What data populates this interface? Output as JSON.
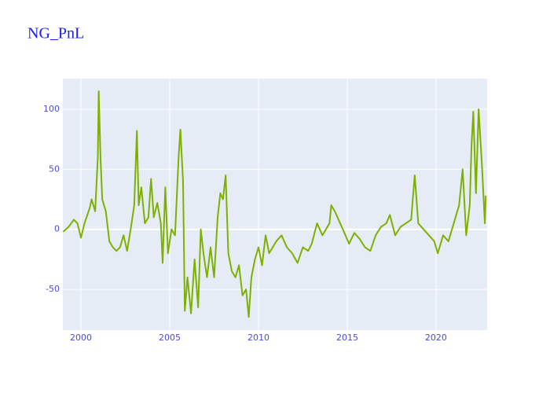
{
  "chart_data": {
    "type": "line",
    "title": "NG_PnL",
    "color": "#7fb000",
    "x": [
      1999.0,
      1999.3,
      1999.6,
      1999.8,
      2000.0,
      2000.2,
      2000.5,
      2000.6,
      2000.8,
      2000.95,
      2001.0,
      2001.1,
      2001.2,
      2001.4,
      2001.6,
      2001.8,
      2002.0,
      2002.2,
      2002.4,
      2002.6,
      2002.8,
      2003.0,
      2003.15,
      2003.25,
      2003.4,
      2003.6,
      2003.8,
      2003.95,
      2004.1,
      2004.3,
      2004.5,
      2004.6,
      2004.75,
      2004.9,
      2005.1,
      2005.3,
      2005.5,
      2005.6,
      2005.75,
      2005.85,
      2006.0,
      2006.2,
      2006.4,
      2006.6,
      2006.75,
      2006.9,
      2007.1,
      2007.3,
      2007.5,
      2007.7,
      2007.85,
      2008.0,
      2008.15,
      2008.3,
      2008.5,
      2008.7,
      2008.9,
      2009.1,
      2009.3,
      2009.45,
      2009.6,
      2009.8,
      2010.0,
      2010.2,
      2010.4,
      2010.6,
      2010.8,
      2011.0,
      2011.3,
      2011.6,
      2011.9,
      2012.2,
      2012.5,
      2012.8,
      2013.0,
      2013.3,
      2013.6,
      2013.8,
      2014.0,
      2014.1,
      2014.3,
      2014.6,
      2014.9,
      2015.1,
      2015.4,
      2015.7,
      2016.0,
      2016.3,
      2016.6,
      2016.9,
      2017.2,
      2017.4,
      2017.7,
      2018.0,
      2018.3,
      2018.6,
      2018.8,
      2019.0,
      2019.3,
      2019.6,
      2019.9,
      2020.1,
      2020.4,
      2020.7,
      2021.0,
      2021.3,
      2021.5,
      2021.7,
      2021.9,
      2022.0,
      2022.1,
      2022.25,
      2022.4,
      2022.6,
      2022.75,
      2022.8
    ],
    "values": [
      -2,
      2,
      8,
      5,
      -7,
      5,
      18,
      25,
      15,
      60,
      115,
      60,
      25,
      15,
      -10,
      -15,
      -18,
      -15,
      -5,
      -18,
      0,
      20,
      82,
      20,
      35,
      5,
      10,
      42,
      10,
      22,
      5,
      -28,
      35,
      -20,
      0,
      -5,
      60,
      83,
      40,
      -68,
      -40,
      -70,
      -25,
      -65,
      0,
      -20,
      -40,
      -15,
      -40,
      10,
      30,
      25,
      45,
      -20,
      -35,
      -40,
      -30,
      -55,
      -50,
      -73,
      -40,
      -25,
      -15,
      -30,
      -5,
      -20,
      -15,
      -10,
      -5,
      -15,
      -20,
      -28,
      -15,
      -18,
      -12,
      5,
      -5,
      0,
      5,
      20,
      15,
      5,
      -5,
      -12,
      -3,
      -8,
      -15,
      -18,
      -5,
      2,
      5,
      12,
      -5,
      2,
      5,
      8,
      45,
      5,
      0,
      -5,
      -10,
      -20,
      -5,
      -10,
      5,
      20,
      50,
      -5,
      20,
      70,
      98,
      30,
      100,
      50,
      5,
      28
    ],
    "xlim": [
      1998.98,
      2022.88
    ],
    "ylim": [
      -84,
      125.5
    ],
    "xticks": [
      2000,
      2005,
      2010,
      2015,
      2020
    ],
    "yticks": [
      -50,
      0,
      50,
      100
    ],
    "grid": true
  }
}
